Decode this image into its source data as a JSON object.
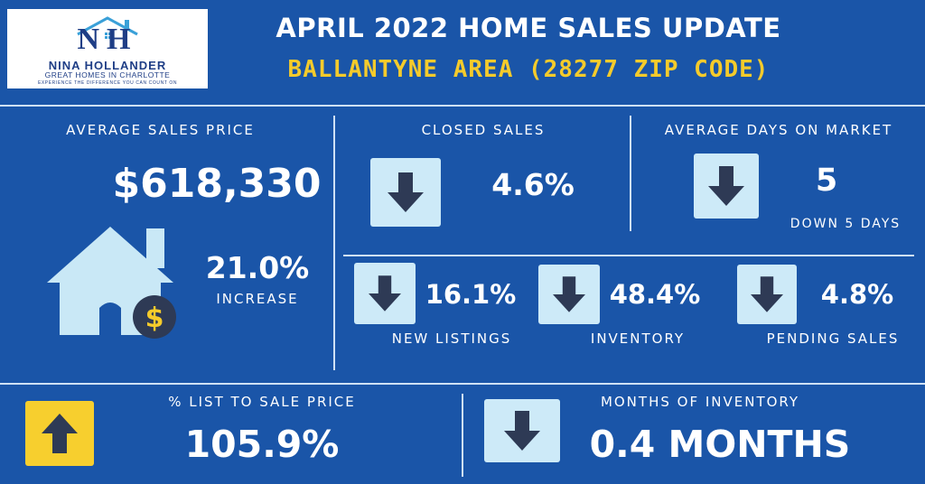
{
  "logo": {
    "initials": "NH",
    "name": "NINA HOLLANDER",
    "subtitle": "GREAT HOMES IN CHARLOTTE",
    "tagline": "EXPERIENCE THE DIFFERENCE YOU CAN COUNT ON"
  },
  "header": {
    "title": "APRIL 2022 HOME SALES UPDATE",
    "subtitle": "BALLANTYNE AREA (28277 ZIP CODE)"
  },
  "avg_sales_price": {
    "label": "AVERAGE SALES PRICE",
    "value": "$618,330",
    "change": "21.0%",
    "change_note": "INCREASE",
    "icon": "house-dollar-icon"
  },
  "closed_sales": {
    "label": "CLOSED SALES",
    "value": "4.6%",
    "direction": "down"
  },
  "days_on_market": {
    "label": "AVERAGE DAYS ON MARKET",
    "value": "5",
    "note": "DOWN 5 DAYS",
    "direction": "down"
  },
  "new_listings": {
    "label": "NEW LISTINGS",
    "value": "16.1%",
    "direction": "down"
  },
  "inventory": {
    "label": "INVENTORY",
    "value": "48.4%",
    "direction": "down"
  },
  "pending_sales": {
    "label": "PENDING SALES",
    "value": "4.8%",
    "direction": "down"
  },
  "list_to_sale": {
    "label": "% LIST TO SALE PRICE",
    "value": "105.9%",
    "direction": "up"
  },
  "months_inventory": {
    "label": "MONTHS OF INVENTORY",
    "value": "0.4 MONTHS",
    "direction": "down"
  },
  "colors": {
    "background": "#1a55a8",
    "accent_yellow": "#f5cb2b",
    "arrow_box": "#cdeaf8",
    "arrow": "#2e3a55",
    "divider": "#cfe1f5",
    "house": "#c9e8f6"
  }
}
